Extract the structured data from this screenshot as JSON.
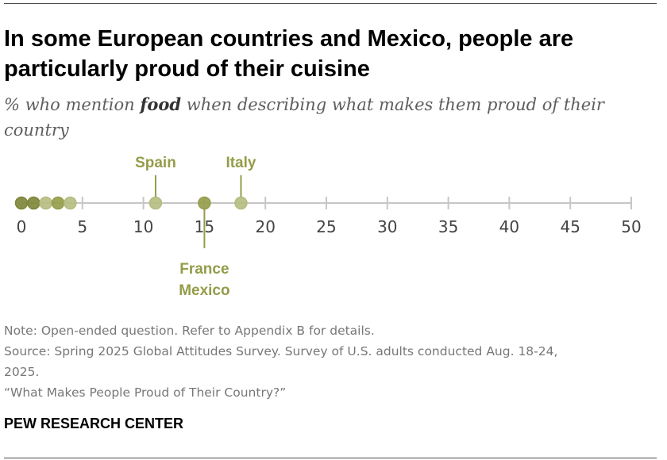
{
  "header": {
    "title_line1": "In some European countries and Mexico, people are",
    "title_line2": "particularly proud of their cuisine",
    "subtitle_pre": "% who mention ",
    "subtitle_bold": "food",
    "subtitle_post": " when describing what makes them proud of their country"
  },
  "chart_data": {
    "type": "scatter",
    "orientation": "horizontal dot plot",
    "title": "",
    "xlabel": "",
    "ylabel": "",
    "xlim": [
      0,
      50
    ],
    "xticks": [
      0,
      5,
      10,
      15,
      20,
      25,
      30,
      35,
      40,
      45,
      50
    ],
    "grid": false,
    "points": [
      {
        "value": 0,
        "shade": "dark"
      },
      {
        "value": 1,
        "shade": "dark"
      },
      {
        "value": 2,
        "shade": "light"
      },
      {
        "value": 3,
        "shade": "medium"
      },
      {
        "value": 4,
        "shade": "light"
      },
      {
        "value": 11,
        "shade": "light",
        "label": "Spain"
      },
      {
        "value": 15,
        "shade": "medium",
        "label": "France\nMexico"
      },
      {
        "value": 18,
        "shade": "light",
        "label": "Italy"
      }
    ],
    "annotations": [
      {
        "text": "Spain",
        "value": 11,
        "position": "above"
      },
      {
        "text": "Italy",
        "value": 18,
        "position": "above"
      },
      {
        "lines": [
          "France",
          "Mexico"
        ],
        "value": 15,
        "position": "below"
      }
    ]
  },
  "colors": {
    "dark": "#7d8537",
    "medium": "#949c49",
    "light": "#b5bc7f",
    "label": "#949c49",
    "axis": "#c6c6c6",
    "tick_text": "#444444"
  },
  "footer": {
    "note": "Note: Open-ended question. Refer to Appendix B for details.",
    "source_line1": "Source: Spring 2025 Global Attitudes Survey. Survey of U.S. adults conducted Aug. 18-24,",
    "source_line2": "2025.",
    "report": "“What Makes People Proud of Their Country?”",
    "brand": "PEW RESEARCH CENTER"
  }
}
